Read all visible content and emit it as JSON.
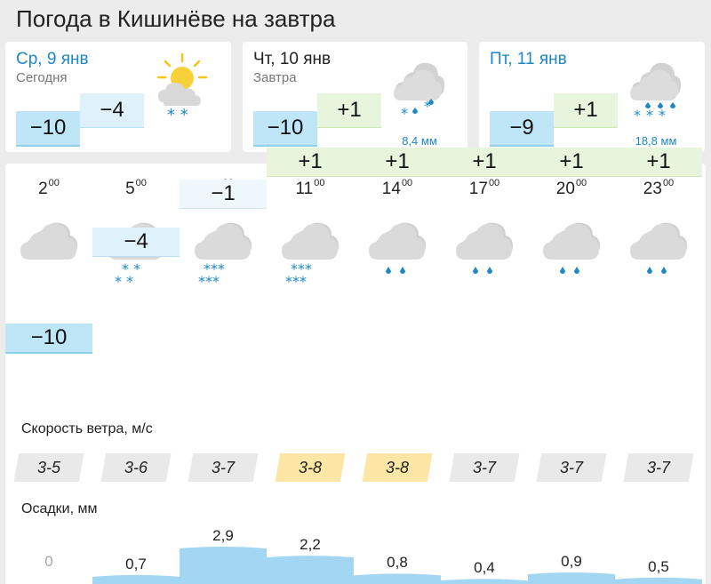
{
  "page_title": "Погода в Кишинёве на завтра",
  "days": [
    {
      "name": "Ср, 9 янв",
      "sub": "Сегодня",
      "min": "−10",
      "max": "−4",
      "precip": "",
      "icon": "sun-cloud-snow-icon",
      "active": false
    },
    {
      "name": "Чт, 10 янв",
      "sub": "Завтра",
      "min": "−10",
      "max": "+1",
      "precip": "8,4 мм",
      "icon": "cloud-sleet-icon",
      "active": true
    },
    {
      "name": "Пт, 11 янв",
      "sub": "",
      "min": "−9",
      "max": "+1",
      "precip": "18,8 мм",
      "icon": "cloud-sleet-icon",
      "active": false
    }
  ],
  "hourly": [
    {
      "hour": "2",
      "sup": "00",
      "temp": "−10",
      "icon": "cloud-icon",
      "wind": "3-5",
      "precip": "0",
      "precip_value": 0
    },
    {
      "hour": "5",
      "sup": "00",
      "temp": "−4",
      "icon": "cloud-light-snow-icon",
      "wind": "3-6",
      "precip": "0,7",
      "precip_value": 0.7
    },
    {
      "hour": "8",
      "sup": "00",
      "temp": "−1",
      "icon": "cloud-snow-icon",
      "wind": "3-7",
      "precip": "2,9",
      "precip_value": 2.9
    },
    {
      "hour": "11",
      "sup": "00",
      "temp": "+1",
      "icon": "cloud-snow-icon",
      "wind": "3-8",
      "precip": "2,2",
      "precip_value": 2.2
    },
    {
      "hour": "14",
      "sup": "00",
      "temp": "+1",
      "icon": "cloud-rain-icon",
      "wind": "3-8",
      "precip": "0,8",
      "precip_value": 0.8
    },
    {
      "hour": "17",
      "sup": "00",
      "temp": "+1",
      "icon": "cloud-rain-icon",
      "wind": "3-7",
      "precip": "0,4",
      "precip_value": 0.4
    },
    {
      "hour": "20",
      "sup": "00",
      "temp": "+1",
      "icon": "cloud-rain-icon",
      "wind": "3-7",
      "precip": "0,9",
      "precip_value": 0.9
    },
    {
      "hour": "23",
      "sup": "00",
      "temp": "+1",
      "icon": "cloud-rain-icon",
      "wind": "3-7",
      "precip": "0,5",
      "precip_value": 0.5
    }
  ],
  "wind_label": "Скорость ветра, м/с",
  "precip_label": "Осадки, мм",
  "colors": {
    "accent": "#1e88c7",
    "cold": "#bfe6f6",
    "warm": "#e8f5dd",
    "strong_wind": "#fbe6a6",
    "precip_fill": "#a3d6f2"
  }
}
